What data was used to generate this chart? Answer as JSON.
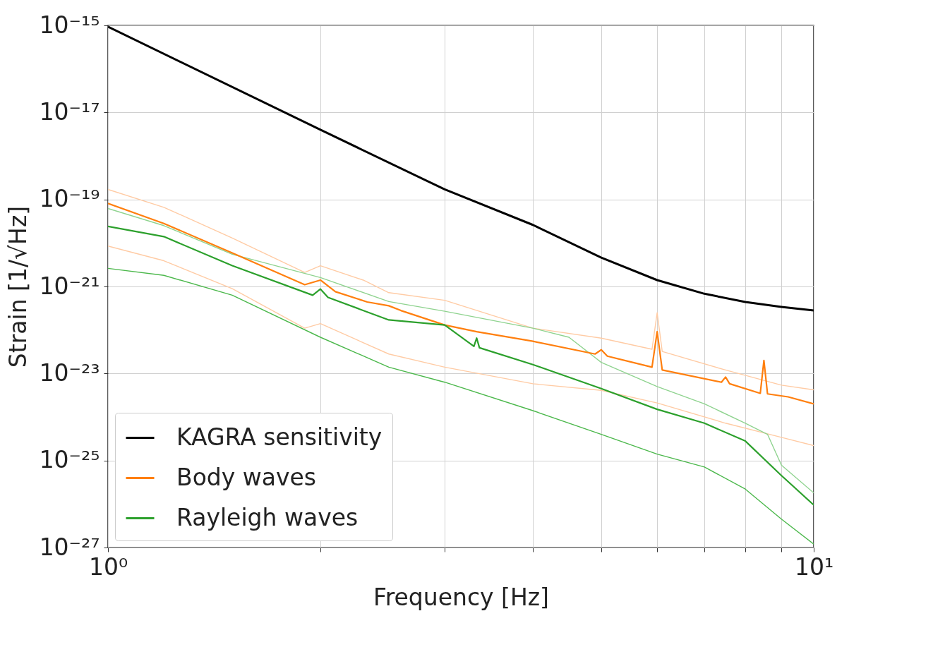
{
  "chart_data": {
    "type": "line",
    "xlabel": "Frequency [Hz]",
    "ylabel": "Strain [1/√Hz]",
    "log": "xy",
    "grid": true,
    "legend": "bottom left",
    "xlim": [
      1,
      10
    ],
    "ylim": [
      1e-27,
      1e-15
    ],
    "xticks": [
      {
        "value": 1,
        "label": "10⁰"
      },
      {
        "value": 2,
        "label": null
      },
      {
        "value": 3,
        "label": null
      },
      {
        "value": 4,
        "label": null
      },
      {
        "value": 5,
        "label": null
      },
      {
        "value": 6,
        "label": null
      },
      {
        "value": 7,
        "label": null
      },
      {
        "value": 8,
        "label": null
      },
      {
        "value": 9,
        "label": null
      },
      {
        "value": 10,
        "label": "10¹"
      }
    ],
    "yticks": [
      {
        "value": 1e-27,
        "label": "10⁻²⁷"
      },
      {
        "value": 1e-25,
        "label": "10⁻²⁵"
      },
      {
        "value": 1e-23,
        "label": "10⁻²³"
      },
      {
        "value": 1e-21,
        "label": "10⁻²¹"
      },
      {
        "value": 1e-19,
        "label": "10⁻¹⁹"
      },
      {
        "value": 1e-17,
        "label": "10⁻¹⁷"
      },
      {
        "value": 1e-15,
        "label": "10⁻¹⁵"
      }
    ],
    "series": [
      {
        "color": "#ffcba4",
        "x": [
          1,
          1.2,
          1.5,
          1.9,
          2,
          2.3,
          2.5,
          3,
          4,
          5,
          5.9,
          6,
          6.1,
          7.5,
          9,
          10
        ],
        "values": [
          1.7e-19,
          6.6e-20,
          1.3e-20,
          2.1e-21,
          3e-21,
          1.4e-21,
          7.2e-22,
          4.8e-22,
          1.1e-22,
          6.5e-23,
          3.6e-23,
          2.5e-22,
          3.2e-23,
          1.2e-23,
          5.4e-24,
          4.2e-24
        ]
      },
      {
        "color": "#ffcba4",
        "x": [
          1,
          1.2,
          1.5,
          1.9,
          2,
          2.5,
          3,
          4,
          5,
          6,
          7.5,
          9,
          10
        ],
        "values": [
          8.5e-21,
          3.9e-21,
          8.9e-22,
          1.1e-22,
          1.4e-22,
          2.8e-23,
          1.4e-23,
          5.8e-24,
          4.1e-24,
          2.1e-24,
          7.2e-25,
          3.4e-25,
          2.2e-25
        ]
      },
      {
        "color": "#8fd38f",
        "x": [
          1,
          1.2,
          1.5,
          2,
          2.5,
          3,
          4,
          4.5,
          5,
          6,
          7,
          8,
          8.6,
          9,
          10
        ],
        "values": [
          6.2e-20,
          2.5e-20,
          5.5e-21,
          1.6e-21,
          4.5e-22,
          2.7e-22,
          1.1e-22,
          6.8e-23,
          1.8e-23,
          5e-24,
          2e-24,
          7.2e-25,
          4e-25,
          7.8e-26,
          1.8e-26
        ]
      },
      {
        "color": "#4cb84c",
        "x": [
          1,
          1.2,
          1.5,
          2,
          2.5,
          3,
          4,
          5,
          6,
          7,
          8,
          9,
          10
        ],
        "values": [
          2.6e-21,
          1.8e-21,
          6.3e-22,
          6.8e-23,
          1.4e-23,
          6.3e-24,
          1.4e-24,
          4e-25,
          1.4e-25,
          7.1e-26,
          2.2e-26,
          4.5e-27,
          1.2e-27
        ]
      },
      {
        "name": "KAGRA sensitivity",
        "color": "#000000",
        "x": [
          1,
          2,
          3,
          4,
          5,
          6,
          7,
          8,
          9,
          10
        ],
        "values": [
          9.3e-16,
          4e-18,
          1.7e-19,
          2.6e-20,
          4.6e-21,
          1.4e-21,
          6.8e-22,
          4.4e-22,
          3.4e-22,
          2.8e-22
        ]
      },
      {
        "name": "Body waves",
        "color": "#ff7f0e",
        "x": [
          1,
          1.2,
          1.5,
          1.9,
          2,
          2.1,
          2.33,
          2.5,
          2.6,
          3,
          3.33,
          4,
          4.9,
          5,
          5.1,
          5.9,
          6,
          6.1,
          7.4,
          7.5,
          7.6,
          8.4,
          8.5,
          8.6,
          9.2,
          10
        ],
        "values": [
          8.1e-20,
          2.8e-20,
          5.9e-21,
          1.1e-21,
          1.4e-21,
          7.6e-22,
          4.4e-22,
          3.6e-22,
          2.8e-22,
          1.3e-22,
          9.1e-23,
          5.5e-23,
          2.8e-23,
          3.5e-23,
          2.5e-23,
          1.4e-23,
          9.1e-23,
          1.2e-23,
          6.3e-24,
          8.3e-24,
          5.8e-24,
          3.5e-24,
          2e-23,
          3.4e-24,
          2.9e-24,
          2e-24
        ]
      },
      {
        "name": "Rayleigh waves",
        "color": "#2ca02c",
        "x": [
          1,
          1.2,
          1.5,
          1.95,
          2,
          2.05,
          2.5,
          3,
          3.3,
          3.33,
          3.36,
          4,
          5,
          6,
          7,
          8,
          9,
          10
        ],
        "values": [
          2.4e-20,
          1.4e-20,
          3e-21,
          6.3e-22,
          8.7e-22,
          5.6e-22,
          1.7e-22,
          1.3e-22,
          4.2e-23,
          6.5e-23,
          3.9e-23,
          1.6e-23,
          4.5e-24,
          1.5e-24,
          7.2e-25,
          2.8e-25,
          4.5e-26,
          9.5e-27
        ]
      }
    ]
  }
}
